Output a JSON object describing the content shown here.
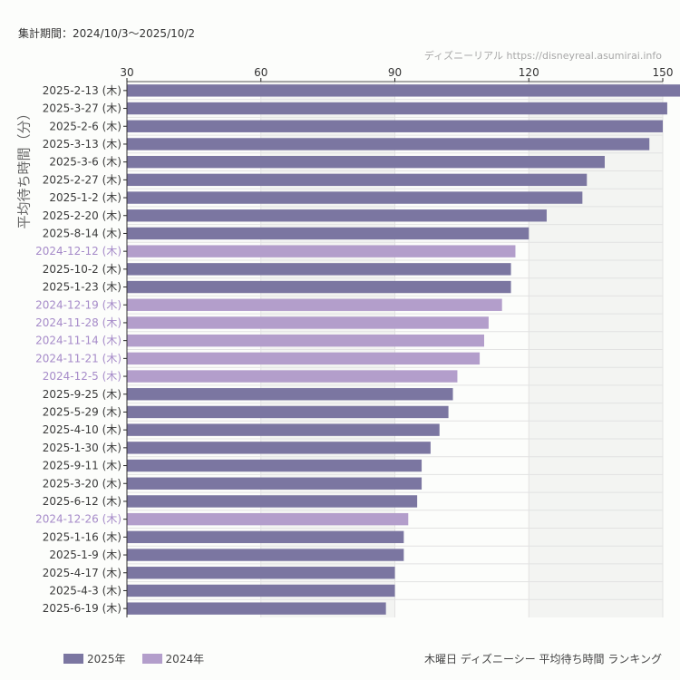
{
  "header": {
    "period": "集計期間：2024/10/3〜2025/10/2",
    "source": "ディズニーリアル https://disneyreal.asumirai.info"
  },
  "footer": {
    "caption": "木曜日 ディズニーシー 平均待ち時間 ランキング"
  },
  "colors": {
    "year2025": "#7b76a1",
    "year2024": "#b39ecb",
    "label2025": "#3a3a3a",
    "label2024": "#a68bc9",
    "band_shaded": "#f3f4f2",
    "band_plain": "#fcfdfb",
    "grid": "#e2e2e2",
    "axis": "#555555"
  },
  "chart_data": {
    "type": "bar",
    "orientation": "horizontal",
    "title": "木曜日 ディズニーシー 平均待ち時間 ランキング",
    "xlabel": "",
    "ylabel": "平均待ち時間（分）",
    "xlim": [
      30,
      150
    ],
    "xticks": [
      30,
      60,
      90,
      120,
      150
    ],
    "grid": true,
    "legend_position": "bottom-left",
    "legend": [
      {
        "name": "2025年",
        "color": "#7b76a1"
      },
      {
        "name": "2024年",
        "color": "#b39ecb"
      }
    ],
    "categories": [
      "2025-2-13 (木)",
      "2025-3-27 (木)",
      "2025-2-6 (木)",
      "2025-3-13 (木)",
      "2025-3-6 (木)",
      "2025-2-27 (木)",
      "2025-1-2 (木)",
      "2025-2-20 (木)",
      "2025-8-14 (木)",
      "2024-12-12 (木)",
      "2025-10-2 (木)",
      "2025-1-23 (木)",
      "2024-12-19 (木)",
      "2024-11-28 (木)",
      "2024-11-14 (木)",
      "2024-11-21 (木)",
      "2024-12-5 (木)",
      "2025-9-25 (木)",
      "2025-5-29 (木)",
      "2025-4-10 (木)",
      "2025-1-30 (木)",
      "2025-9-11 (木)",
      "2025-3-20 (木)",
      "2025-6-12 (木)",
      "2024-12-26 (木)",
      "2025-1-16 (木)",
      "2025-1-9 (木)",
      "2025-4-17 (木)",
      "2025-4-3 (木)",
      "2025-6-19 (木)"
    ],
    "values": [
      154,
      151,
      150,
      147,
      137,
      133,
      132,
      124,
      120,
      117,
      116,
      116,
      114,
      111,
      110,
      109,
      104,
      103,
      102,
      100,
      98,
      96,
      96,
      95,
      93,
      92,
      92,
      90,
      90,
      88
    ],
    "series_by_bar": [
      "2025年",
      "2025年",
      "2025年",
      "2025年",
      "2025年",
      "2025年",
      "2025年",
      "2025年",
      "2025年",
      "2024年",
      "2025年",
      "2025年",
      "2024年",
      "2024年",
      "2024年",
      "2024年",
      "2024年",
      "2025年",
      "2025年",
      "2025年",
      "2025年",
      "2025年",
      "2025年",
      "2025年",
      "2024年",
      "2025年",
      "2025年",
      "2025年",
      "2025年",
      "2025年"
    ]
  }
}
